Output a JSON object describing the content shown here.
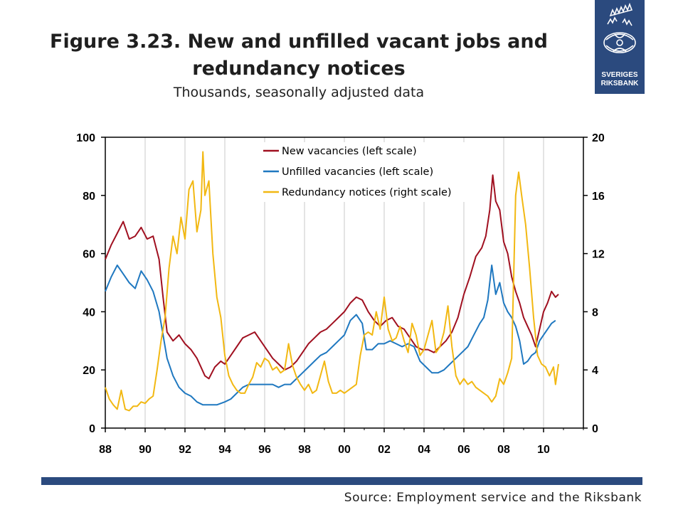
{
  "title": {
    "line1": "Figure 3.23. New and unfilled vacant jobs and",
    "line2": "redundancy notices",
    "subtitle": "Thousands, seasonally adjusted data"
  },
  "logo": {
    "name": "crown-emblem",
    "line1": "SVERIGES",
    "line2": "RIKSBANK",
    "color": "#2b4a7e"
  },
  "source": "Source: Employment service and the Riksbank",
  "chart_data": {
    "type": "line",
    "x_range": [
      1988,
      2012
    ],
    "x_ticks": [
      {
        "x": 1988,
        "label": "88"
      },
      {
        "x": 1990,
        "label": "90"
      },
      {
        "x": 1992,
        "label": "92"
      },
      {
        "x": 1994,
        "label": "94"
      },
      {
        "x": 1996,
        "label": "96"
      },
      {
        "x": 1998,
        "label": "98"
      },
      {
        "x": 2000,
        "label": "00"
      },
      {
        "x": 2002,
        "label": "02"
      },
      {
        "x": 2004,
        "label": "04"
      },
      {
        "x": 2006,
        "label": "06"
      },
      {
        "x": 2008,
        "label": "08"
      },
      {
        "x": 2010,
        "label": "10"
      }
    ],
    "y_left": {
      "range": [
        0,
        100
      ],
      "ticks": [
        "0",
        "20",
        "40",
        "60",
        "80",
        "100"
      ]
    },
    "y_right": {
      "range": [
        0,
        20
      ],
      "ticks": [
        "0",
        "4",
        "8",
        "12",
        "16",
        "20"
      ]
    },
    "grid": "vertical",
    "legend_position": "top-center",
    "series": [
      {
        "name": "New vacancies (left scale)",
        "axis": "left",
        "color": "#a01020",
        "points": [
          [
            1988.0,
            58
          ],
          [
            1988.3,
            63
          ],
          [
            1988.6,
            67
          ],
          [
            1988.9,
            71
          ],
          [
            1989.2,
            65
          ],
          [
            1989.5,
            66
          ],
          [
            1989.8,
            69
          ],
          [
            1990.1,
            65
          ],
          [
            1990.4,
            66
          ],
          [
            1990.7,
            58
          ],
          [
            1990.9,
            45
          ],
          [
            1991.1,
            33
          ],
          [
            1991.4,
            30
          ],
          [
            1991.7,
            32
          ],
          [
            1992.0,
            29
          ],
          [
            1992.3,
            27
          ],
          [
            1992.6,
            24
          ],
          [
            1992.8,
            21
          ],
          [
            1993.0,
            18
          ],
          [
            1993.2,
            17
          ],
          [
            1993.5,
            21
          ],
          [
            1993.8,
            23
          ],
          [
            1994.0,
            22
          ],
          [
            1994.3,
            25
          ],
          [
            1994.6,
            28
          ],
          [
            1994.9,
            31
          ],
          [
            1995.2,
            32
          ],
          [
            1995.5,
            33
          ],
          [
            1995.8,
            30
          ],
          [
            1996.1,
            27
          ],
          [
            1996.4,
            24
          ],
          [
            1996.7,
            22
          ],
          [
            1997.0,
            20
          ],
          [
            1997.3,
            21
          ],
          [
            1997.6,
            23
          ],
          [
            1997.9,
            26
          ],
          [
            1998.2,
            29
          ],
          [
            1998.5,
            31
          ],
          [
            1998.8,
            33
          ],
          [
            1999.1,
            34
          ],
          [
            1999.4,
            36
          ],
          [
            1999.7,
            38
          ],
          [
            2000.0,
            40
          ],
          [
            2000.3,
            43
          ],
          [
            2000.6,
            45
          ],
          [
            2000.9,
            44
          ],
          [
            2001.2,
            40
          ],
          [
            2001.5,
            37
          ],
          [
            2001.8,
            35
          ],
          [
            2002.1,
            37
          ],
          [
            2002.4,
            38
          ],
          [
            2002.7,
            35
          ],
          [
            2003.0,
            34
          ],
          [
            2003.3,
            31
          ],
          [
            2003.6,
            28
          ],
          [
            2003.9,
            27
          ],
          [
            2004.2,
            27
          ],
          [
            2004.5,
            26
          ],
          [
            2004.8,
            28
          ],
          [
            2005.1,
            30
          ],
          [
            2005.4,
            33
          ],
          [
            2005.7,
            38
          ],
          [
            2006.0,
            46
          ],
          [
            2006.3,
            52
          ],
          [
            2006.6,
            59
          ],
          [
            2006.9,
            62
          ],
          [
            2007.1,
            66
          ],
          [
            2007.3,
            75
          ],
          [
            2007.45,
            87
          ],
          [
            2007.6,
            78
          ],
          [
            2007.8,
            75
          ],
          [
            2008.0,
            64
          ],
          [
            2008.2,
            60
          ],
          [
            2008.4,
            52
          ],
          [
            2008.6,
            47
          ],
          [
            2008.8,
            43
          ],
          [
            2009.0,
            38
          ],
          [
            2009.2,
            35
          ],
          [
            2009.4,
            32
          ],
          [
            2009.6,
            28
          ],
          [
            2009.8,
            34
          ],
          [
            2010.0,
            40
          ],
          [
            2010.2,
            43
          ],
          [
            2010.4,
            47
          ],
          [
            2010.6,
            45
          ],
          [
            2010.75,
            46
          ]
        ]
      },
      {
        "name": "Unfilled vacancies (left scale)",
        "axis": "left",
        "color": "#1f78c0",
        "points": [
          [
            1988.0,
            47
          ],
          [
            1988.3,
            52
          ],
          [
            1988.6,
            56
          ],
          [
            1988.9,
            53
          ],
          [
            1989.2,
            50
          ],
          [
            1989.5,
            48
          ],
          [
            1989.8,
            54
          ],
          [
            1990.1,
            51
          ],
          [
            1990.4,
            47
          ],
          [
            1990.7,
            40
          ],
          [
            1990.9,
            32
          ],
          [
            1991.1,
            24
          ],
          [
            1991.4,
            18
          ],
          [
            1991.7,
            14
          ],
          [
            1992.0,
            12
          ],
          [
            1992.3,
            11
          ],
          [
            1992.6,
            9
          ],
          [
            1992.9,
            8
          ],
          [
            1993.2,
            8
          ],
          [
            1993.6,
            8
          ],
          [
            1994.0,
            9
          ],
          [
            1994.3,
            10
          ],
          [
            1994.6,
            12
          ],
          [
            1994.9,
            14
          ],
          [
            1995.2,
            15
          ],
          [
            1995.5,
            15
          ],
          [
            1995.8,
            15
          ],
          [
            1996.1,
            15
          ],
          [
            1996.4,
            15
          ],
          [
            1996.7,
            14
          ],
          [
            1997.0,
            15
          ],
          [
            1997.3,
            15
          ],
          [
            1997.6,
            17
          ],
          [
            1997.9,
            19
          ],
          [
            1998.2,
            21
          ],
          [
            1998.5,
            23
          ],
          [
            1998.8,
            25
          ],
          [
            1999.1,
            26
          ],
          [
            1999.4,
            28
          ],
          [
            1999.7,
            30
          ],
          [
            2000.0,
            32
          ],
          [
            2000.3,
            37
          ],
          [
            2000.6,
            39
          ],
          [
            2000.9,
            36
          ],
          [
            2001.1,
            27
          ],
          [
            2001.4,
            27
          ],
          [
            2001.7,
            29
          ],
          [
            2002.0,
            29
          ],
          [
            2002.3,
            30
          ],
          [
            2002.6,
            29
          ],
          [
            2002.9,
            28
          ],
          [
            2003.2,
            29
          ],
          [
            2003.5,
            28
          ],
          [
            2003.8,
            23
          ],
          [
            2004.1,
            21
          ],
          [
            2004.4,
            19
          ],
          [
            2004.7,
            19
          ],
          [
            2005.0,
            20
          ],
          [
            2005.3,
            22
          ],
          [
            2005.6,
            24
          ],
          [
            2005.9,
            26
          ],
          [
            2006.2,
            28
          ],
          [
            2006.5,
            32
          ],
          [
            2006.8,
            36
          ],
          [
            2007.0,
            38
          ],
          [
            2007.2,
            44
          ],
          [
            2007.4,
            56
          ],
          [
            2007.6,
            46
          ],
          [
            2007.8,
            50
          ],
          [
            2008.0,
            43
          ],
          [
            2008.2,
            40
          ],
          [
            2008.4,
            38
          ],
          [
            2008.6,
            35
          ],
          [
            2008.8,
            30
          ],
          [
            2009.0,
            22
          ],
          [
            2009.2,
            23
          ],
          [
            2009.4,
            25
          ],
          [
            2009.6,
            26
          ],
          [
            2009.8,
            30
          ],
          [
            2010.0,
            32
          ],
          [
            2010.2,
            34
          ],
          [
            2010.4,
            36
          ],
          [
            2010.6,
            37
          ]
        ]
      },
      {
        "name": "Redundancy notices (right scale)",
        "axis": "right",
        "color": "#f2b812",
        "points": [
          [
            1988.0,
            2.8
          ],
          [
            1988.2,
            2.0
          ],
          [
            1988.4,
            1.6
          ],
          [
            1988.6,
            1.3
          ],
          [
            1988.8,
            2.6
          ],
          [
            1989.0,
            1.3
          ],
          [
            1989.2,
            1.2
          ],
          [
            1989.4,
            1.5
          ],
          [
            1989.6,
            1.5
          ],
          [
            1989.8,
            1.8
          ],
          [
            1990.0,
            1.7
          ],
          [
            1990.2,
            2.0
          ],
          [
            1990.4,
            2.2
          ],
          [
            1990.6,
            4.0
          ],
          [
            1990.8,
            6.0
          ],
          [
            1991.0,
            7.6
          ],
          [
            1991.2,
            11.0
          ],
          [
            1991.4,
            13.2
          ],
          [
            1991.6,
            12.0
          ],
          [
            1991.8,
            14.5
          ],
          [
            1992.0,
            13.0
          ],
          [
            1992.2,
            16.4
          ],
          [
            1992.4,
            17.0
          ],
          [
            1992.6,
            13.5
          ],
          [
            1992.8,
            15.0
          ],
          [
            1992.9,
            19.0
          ],
          [
            1993.0,
            16.0
          ],
          [
            1993.2,
            17.0
          ],
          [
            1993.4,
            12.0
          ],
          [
            1993.6,
            9.0
          ],
          [
            1993.8,
            7.6
          ],
          [
            1994.0,
            5.0
          ],
          [
            1994.2,
            3.6
          ],
          [
            1994.4,
            3.0
          ],
          [
            1994.6,
            2.6
          ],
          [
            1994.8,
            2.4
          ],
          [
            1995.0,
            2.4
          ],
          [
            1995.2,
            3.0
          ],
          [
            1995.4,
            3.5
          ],
          [
            1995.6,
            4.5
          ],
          [
            1995.8,
            4.2
          ],
          [
            1996.0,
            4.8
          ],
          [
            1996.2,
            4.6
          ],
          [
            1996.4,
            4.0
          ],
          [
            1996.6,
            4.2
          ],
          [
            1996.8,
            3.8
          ],
          [
            1997.0,
            4.0
          ],
          [
            1997.2,
            5.8
          ],
          [
            1997.4,
            4.3
          ],
          [
            1997.6,
            3.5
          ],
          [
            1997.8,
            3.0
          ],
          [
            1998.0,
            2.6
          ],
          [
            1998.2,
            3.0
          ],
          [
            1998.4,
            2.4
          ],
          [
            1998.6,
            2.6
          ],
          [
            1998.8,
            3.6
          ],
          [
            1999.0,
            4.6
          ],
          [
            1999.2,
            3.2
          ],
          [
            1999.4,
            2.4
          ],
          [
            1999.6,
            2.4
          ],
          [
            1999.8,
            2.6
          ],
          [
            2000.0,
            2.4
          ],
          [
            2000.2,
            2.6
          ],
          [
            2000.4,
            2.8
          ],
          [
            2000.6,
            3.0
          ],
          [
            2000.8,
            5.0
          ],
          [
            2001.0,
            6.4
          ],
          [
            2001.2,
            6.6
          ],
          [
            2001.4,
            6.4
          ],
          [
            2001.6,
            8.0
          ],
          [
            2001.8,
            6.8
          ],
          [
            2002.0,
            9.0
          ],
          [
            2002.2,
            6.8
          ],
          [
            2002.4,
            6.0
          ],
          [
            2002.6,
            6.2
          ],
          [
            2002.8,
            7.0
          ],
          [
            2003.0,
            6.0
          ],
          [
            2003.2,
            5.2
          ],
          [
            2003.4,
            7.2
          ],
          [
            2003.6,
            6.4
          ],
          [
            2003.8,
            5.0
          ],
          [
            2004.0,
            5.4
          ],
          [
            2004.2,
            6.4
          ],
          [
            2004.4,
            7.4
          ],
          [
            2004.6,
            5.2
          ],
          [
            2004.8,
            5.6
          ],
          [
            2005.0,
            6.6
          ],
          [
            2005.2,
            8.4
          ],
          [
            2005.4,
            5.6
          ],
          [
            2005.6,
            3.6
          ],
          [
            2005.8,
            3.0
          ],
          [
            2006.0,
            3.4
          ],
          [
            2006.2,
            3.0
          ],
          [
            2006.4,
            3.2
          ],
          [
            2006.6,
            2.8
          ],
          [
            2006.8,
            2.6
          ],
          [
            2007.0,
            2.4
          ],
          [
            2007.2,
            2.2
          ],
          [
            2007.4,
            1.8
          ],
          [
            2007.6,
            2.2
          ],
          [
            2007.8,
            3.4
          ],
          [
            2008.0,
            3.0
          ],
          [
            2008.2,
            3.8
          ],
          [
            2008.4,
            4.8
          ],
          [
            2008.6,
            16.0
          ],
          [
            2008.75,
            17.6
          ],
          [
            2008.9,
            16.0
          ],
          [
            2009.1,
            14.0
          ],
          [
            2009.3,
            11.0
          ],
          [
            2009.5,
            7.6
          ],
          [
            2009.7,
            5.0
          ],
          [
            2009.9,
            4.4
          ],
          [
            2010.1,
            4.2
          ],
          [
            2010.3,
            3.6
          ],
          [
            2010.5,
            4.2
          ],
          [
            2010.6,
            3.0
          ],
          [
            2010.75,
            4.4
          ]
        ]
      }
    ]
  }
}
